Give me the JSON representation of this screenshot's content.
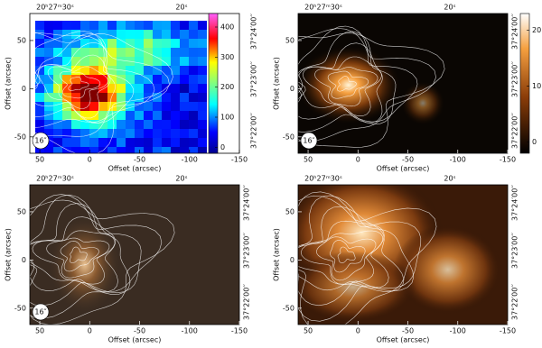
{
  "chart_data": [
    {
      "type": "image",
      "colormap": "jet",
      "x_label": "Offset (arcsec)",
      "y_label": "Offset (arcsec)",
      "xlim": [
        60,
        -150
      ],
      "ylim": [
        -67,
        78
      ],
      "xticks": [
        50,
        0,
        -50,
        -100,
        -150
      ],
      "yticks": [
        50,
        0,
        -50
      ],
      "top_tick_labels": [
        "20ʰ27ᵐ30ˢ",
        "20ˢ"
      ],
      "right_tick_labels": [
        "37°24′00′′",
        "37°23′00′′",
        "37°22′00′′"
      ],
      "beam_label": "16″",
      "colorbar": {
        "clim": [
          -20,
          445
        ],
        "ticks": [
          0,
          100,
          200,
          300,
          400
        ]
      }
    },
    {
      "type": "image",
      "colormap": "orange",
      "x_label": "Offset (arcsec)",
      "y_label": "Offset (arcsec)",
      "xlim": [
        60,
        -150
      ],
      "ylim": [
        -67,
        78
      ],
      "xticks": [
        50,
        0,
        -50,
        -100,
        -150
      ],
      "yticks": [
        50,
        0,
        -50
      ],
      "top_tick_labels": [
        "20ʰ27ᵐ30ˢ",
        "20ˢ"
      ],
      "right_tick_labels": [
        "37°24′00′′",
        "37°23′00′′",
        "37°22′00′′"
      ],
      "beam_label": "16″",
      "colorbar": {
        "clim": [
          -2,
          23
        ],
        "ticks": [
          0,
          10,
          20
        ]
      }
    },
    {
      "type": "image",
      "colormap": "dim",
      "x_label": "Offset (arcsec)",
      "y_label": "Offset (arcsec)",
      "xlim": [
        60,
        -150
      ],
      "ylim": [
        -67,
        78
      ],
      "xticks": [
        50,
        0,
        -50,
        -100,
        -150
      ],
      "yticks": [
        50,
        0,
        -50
      ],
      "top_tick_labels": [
        "20ʰ27ᵐ30ˢ",
        "20ˢ"
      ],
      "right_tick_labels": [
        "37°24′00′′",
        "37°23′00′′",
        "37°22′00′′"
      ],
      "beam_label": "16″"
    },
    {
      "type": "image",
      "colormap": "nebula",
      "x_label": "Offset (arcsec)",
      "y_label": "Offset (arcsec)",
      "xlim": [
        60,
        -150
      ],
      "ylim": [
        -67,
        78
      ],
      "xticks": [
        50,
        0,
        -50,
        -100,
        -150
      ],
      "yticks": [
        50,
        0,
        -50
      ],
      "top_tick_labels": [
        "20ʰ27ᵐ30ˢ",
        "20ˢ"
      ],
      "right_tick_labels": [
        "37°24′00′′",
        "37°23′00′′",
        "37°22′00′′"
      ]
    }
  ]
}
